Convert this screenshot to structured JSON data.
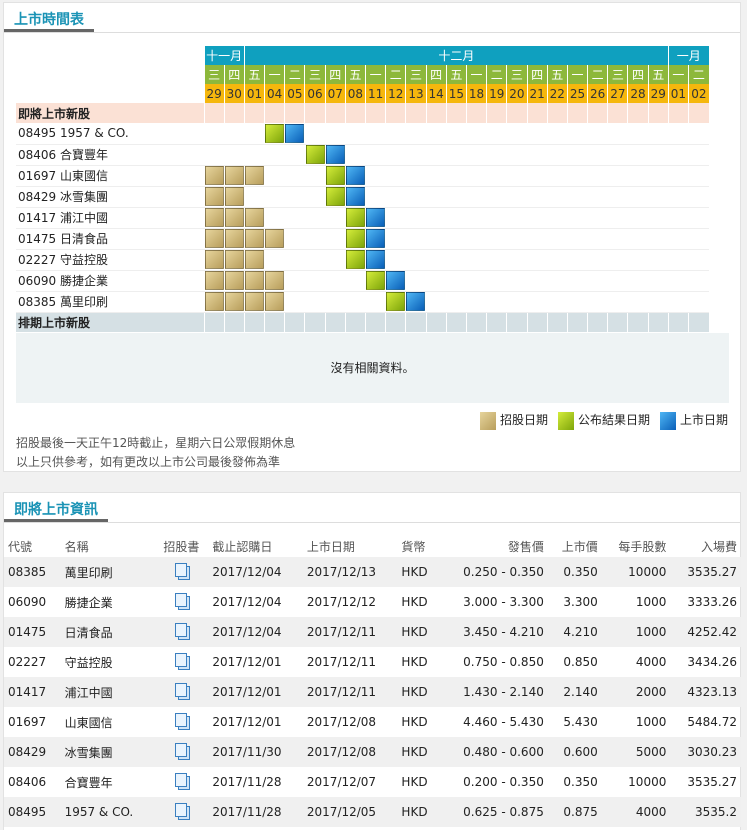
{
  "schedule": {
    "title": "上市時間表",
    "months": [
      {
        "label": "十一月",
        "span": 2
      },
      {
        "label": "十二月",
        "span": 21
      },
      {
        "label": "一月",
        "span": 2
      }
    ],
    "weekdays": [
      "三",
      "四",
      "五",
      "一",
      "二",
      "三",
      "四",
      "五",
      "一",
      "二",
      "三",
      "四",
      "五",
      "一",
      "二",
      "三",
      "四",
      "五",
      "一",
      "二",
      "三",
      "四",
      "五",
      "一",
      "二"
    ],
    "dates": [
      "29",
      "30",
      "01",
      "04",
      "05",
      "06",
      "07",
      "08",
      "11",
      "12",
      "13",
      "14",
      "15",
      "18",
      "19",
      "20",
      "21",
      "22",
      "25",
      "26",
      "27",
      "28",
      "29",
      "01",
      "02"
    ],
    "upcoming_label": "即將上市新股",
    "upcoming": [
      {
        "label": "08495 1957 & CO.",
        "subscription": [],
        "result": [
          3
        ],
        "listing": [
          4
        ]
      },
      {
        "label": "08406 合寶豐年",
        "subscription": [],
        "result": [
          5
        ],
        "listing": [
          6
        ]
      },
      {
        "label": "01697 山東國信",
        "subscription": [
          0,
          1,
          2
        ],
        "result": [
          6
        ],
        "listing": [
          7
        ]
      },
      {
        "label": "08429 冰雪集團",
        "subscription": [
          0,
          1
        ],
        "result": [
          6
        ],
        "listing": [
          7
        ]
      },
      {
        "label": "01417 浦江中國",
        "subscription": [
          0,
          1,
          2
        ],
        "result": [
          7
        ],
        "listing": [
          8
        ]
      },
      {
        "label": "01475 日清食品",
        "subscription": [
          0,
          1,
          2,
          3
        ],
        "result": [
          7
        ],
        "listing": [
          8
        ]
      },
      {
        "label": "02227 守益控股",
        "subscription": [
          0,
          1,
          2
        ],
        "result": [
          7
        ],
        "listing": [
          8
        ]
      },
      {
        "label": "06090 勝捷企業",
        "subscription": [
          0,
          1,
          2,
          3
        ],
        "result": [
          8
        ],
        "listing": [
          9
        ]
      },
      {
        "label": "08385 萬里印刷",
        "subscription": [
          0,
          1,
          2,
          3
        ],
        "result": [
          9
        ],
        "listing": [
          10
        ]
      }
    ],
    "scheduled_label": "排期上市新股",
    "no_data": "沒有相關資料。",
    "legend": {
      "subscription": "招股日期",
      "result": "公布結果日期",
      "listing": "上市日期"
    },
    "notes": [
      "招股最後一天正午12時截止，星期六日公眾假期休息",
      "以上只供參考，如有更改以上市公司最後發佈為準"
    ],
    "colors": {
      "month": "#0fa0bf",
      "weekday": "#8db83b",
      "date": "#f5b70d",
      "subscription": "#c9b374",
      "result": "#a8cc1c",
      "listing": "#1a7fd4"
    }
  },
  "ipo_info": {
    "title": "即將上市資訊",
    "headers": [
      "代號",
      "名稱",
      "招股書",
      "截止認購日",
      "上市日期",
      "貨幣",
      "發售價",
      "上市價",
      "每手股數",
      "入場費"
    ],
    "rows": [
      [
        "08385",
        "萬里印刷",
        "2017/12/04",
        "2017/12/13",
        "HKD",
        "0.250 - 0.350",
        "0.350",
        "10000",
        "3535.27"
      ],
      [
        "06090",
        "勝捷企業",
        "2017/12/04",
        "2017/12/12",
        "HKD",
        "3.000 - 3.300",
        "3.300",
        "1000",
        "3333.26"
      ],
      [
        "01475",
        "日清食品",
        "2017/12/04",
        "2017/12/11",
        "HKD",
        "3.450 - 4.210",
        "4.210",
        "1000",
        "4252.42"
      ],
      [
        "02227",
        "守益控股",
        "2017/12/01",
        "2017/12/11",
        "HKD",
        "0.750 - 0.850",
        "0.850",
        "4000",
        "3434.26"
      ],
      [
        "01417",
        "浦江中國",
        "2017/12/01",
        "2017/12/11",
        "HKD",
        "1.430 - 2.140",
        "2.140",
        "2000",
        "4323.13"
      ],
      [
        "01697",
        "山東國信",
        "2017/12/01",
        "2017/12/08",
        "HKD",
        "4.460 - 5.430",
        "5.430",
        "1000",
        "5484.72"
      ],
      [
        "08429",
        "冰雪集團",
        "2017/11/30",
        "2017/12/08",
        "HKD",
        "0.480 - 0.600",
        "0.600",
        "5000",
        "3030.23"
      ],
      [
        "08406",
        "合寶豐年",
        "2017/11/28",
        "2017/12/07",
        "HKD",
        "0.200 - 0.350",
        "0.350",
        "10000",
        "3535.27"
      ],
      [
        "08495",
        "1957 & CO.",
        "2017/11/28",
        "2017/12/05",
        "HKD",
        "0.625 - 0.875",
        "0.875",
        "4000",
        "3535.2"
      ]
    ]
  }
}
